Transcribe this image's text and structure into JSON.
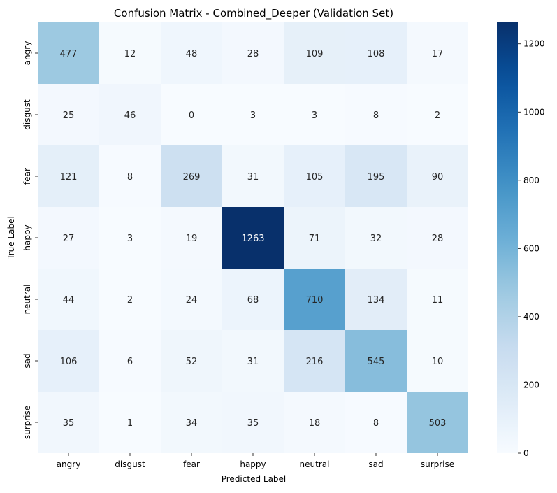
{
  "chart_data": {
    "type": "heatmap",
    "title": "Confusion Matrix - Combined_Deeper (Validation Set)",
    "xlabel": "Predicted Label",
    "ylabel": "True Label",
    "x_categories": [
      "angry",
      "disgust",
      "fear",
      "happy",
      "neutral",
      "sad",
      "surprise"
    ],
    "y_categories": [
      "angry",
      "disgust",
      "fear",
      "happy",
      "neutral",
      "sad",
      "surprise"
    ],
    "values": [
      [
        477,
        12,
        48,
        28,
        109,
        108,
        17
      ],
      [
        25,
        46,
        0,
        3,
        3,
        8,
        2
      ],
      [
        121,
        8,
        269,
        31,
        105,
        195,
        90
      ],
      [
        27,
        3,
        19,
        1263,
        71,
        32,
        28
      ],
      [
        44,
        2,
        24,
        68,
        710,
        134,
        11
      ],
      [
        106,
        6,
        52,
        31,
        216,
        545,
        10
      ],
      [
        35,
        1,
        34,
        35,
        18,
        8,
        503
      ]
    ],
    "colorbar": {
      "colormap": "Blues",
      "min": 0,
      "max": 1263,
      "ticks": [
        0,
        200,
        400,
        600,
        800,
        1000,
        1200
      ]
    },
    "colors": {
      "low": "#f7fbff",
      "high": "#08306b",
      "text_dark": "#262626",
      "text_light": "#ffffff"
    }
  }
}
